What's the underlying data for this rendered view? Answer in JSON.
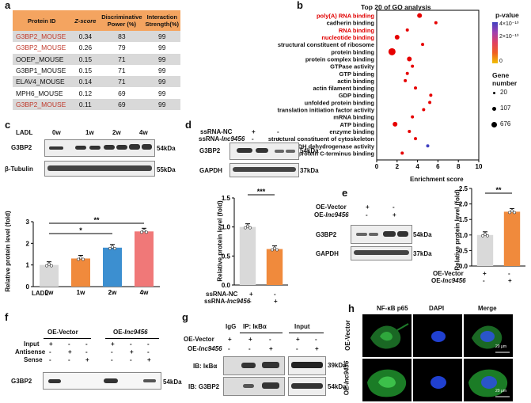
{
  "panels": {
    "a": "a",
    "b": "b",
    "c": "c",
    "d": "d",
    "e": "e",
    "f": "f",
    "g": "g",
    "h": "h"
  },
  "table": {
    "headers": [
      "Protein ID",
      "Z-score",
      "Discriminative Power (%)",
      "Interaction Strength(%)"
    ],
    "rows": [
      {
        "id": "G3BP2_MOUSE",
        "z": "0.34",
        "dp": "83",
        "is": "99",
        "highlight": true
      },
      {
        "id": "G3BP2_MOUSE",
        "z": "0.26",
        "dp": "79",
        "is": "99",
        "highlight": true
      },
      {
        "id": "OOEP_MOUSE",
        "z": "0.15",
        "dp": "71",
        "is": "99",
        "highlight": false
      },
      {
        "id": "G3BP1_MOUSE",
        "z": "0.15",
        "dp": "71",
        "is": "99",
        "highlight": false
      },
      {
        "id": "ELAV4_MOUSE",
        "z": "0.14",
        "dp": "71",
        "is": "99",
        "highlight": false
      },
      {
        "id": "MPH6_MOUSE",
        "z": "0.12",
        "dp": "69",
        "is": "99",
        "highlight": false
      },
      {
        "id": "G3BP2_MOUSE",
        "z": "0.11",
        "dp": "69",
        "is": "99",
        "highlight": true
      }
    ]
  },
  "go": {
    "title": "Top 20 of GO analysis",
    "xlabel": "Enrichment score",
    "xticks": [
      0,
      2,
      4,
      6,
      8,
      10
    ],
    "pvalue_label": "p-value",
    "pvalue_ticks": [
      "4×10⁻¹⁰",
      "2×10⁻¹⁰",
      "0"
    ],
    "gene_label": "Gene number",
    "gene_sizes": [
      "20",
      "107",
      "676"
    ],
    "colors": {
      "low": "#e60000",
      "mid": "#f0a000",
      "high": "#4040c0"
    }
  },
  "chart_data": [
    {
      "type": "scatter",
      "title": "Top 20 of GO analysis",
      "xlabel": "Enrichment score",
      "xlim": [
        0,
        10
      ],
      "categories": [
        "poly(A) RNA binding",
        "cadherin binding",
        "RNA binding",
        "nucleotide binding",
        "structural constituent of ribosome",
        "protein binding",
        "protein complex binding",
        "GTPase activity",
        "GTP binding",
        "actin binding",
        "actin filament binding",
        "GDP binding",
        "unfolded protein binding",
        "translation initiation factor activity",
        "mRNA binding",
        "ATP binding",
        "enzyme binding",
        "structural constituent of cytoskeleton",
        "NADH dehydrogenase activity",
        "protein C-terminus binding"
      ],
      "highlighted": [
        "poly(A) RNA binding",
        "RNA binding",
        "nucleotide binding"
      ],
      "x": [
        4.2,
        5.8,
        3.0,
        2.0,
        4.5,
        1.5,
        3.2,
        3.5,
        3.0,
        2.8,
        3.8,
        5.3,
        5.2,
        4.6,
        3.5,
        1.8,
        3.2,
        3.8,
        5.0,
        2.5
      ],
      "size_class": [
        "med",
        "small",
        "small",
        "med",
        "small",
        "large",
        "med",
        "small",
        "small",
        "small",
        "small",
        "small",
        "small",
        "small",
        "small",
        "med",
        "small",
        "small",
        "small",
        "small"
      ],
      "color_class": [
        "low",
        "low",
        "low",
        "low",
        "low",
        "low",
        "low",
        "low",
        "low",
        "low",
        "low",
        "low",
        "low",
        "low",
        "low",
        "low",
        "low",
        "low",
        "high",
        "low"
      ]
    },
    {
      "type": "bar",
      "ylabel": "Relative protein level (fold)",
      "categories": [
        "0w",
        "1w",
        "2w",
        "4w"
      ],
      "values": [
        1.0,
        1.3,
        1.8,
        2.55
      ],
      "ylim": [
        0,
        3.0
      ],
      "yticks": [
        "0",
        "1",
        "2",
        "3"
      ],
      "xaxis_label": "LADL",
      "sig": [
        {
          "label": "*"
        },
        {
          "label": "**"
        }
      ],
      "colors": [
        "#d9d9d9",
        "#f08a3c",
        "#3c8fd0",
        "#f07878"
      ]
    },
    {
      "type": "bar",
      "ylabel": "Relative protein level (fold)",
      "categories": [
        "ssRNA-NC",
        "ssRNA-lnc9456"
      ],
      "values": [
        1.0,
        0.62
      ],
      "ylim": [
        0,
        1.5
      ],
      "yticks": [
        "0.0",
        "0.5",
        "1.0",
        "1.5"
      ],
      "sig": [
        {
          "label": "***"
        }
      ],
      "colors": [
        "#d9d9d9",
        "#f08a3c"
      ]
    },
    {
      "type": "bar",
      "ylabel": "Relative protein level (fold)",
      "categories": [
        "OE-Vector",
        "OE-lnc9456"
      ],
      "values": [
        1.0,
        1.75
      ],
      "ylim": [
        0,
        2.5
      ],
      "yticks": [
        "0.0",
        "0.5",
        "1.0",
        "1.5",
        "2.0",
        "2.5"
      ],
      "sig": [
        {
          "label": "**"
        }
      ],
      "colors": [
        "#d9d9d9",
        "#f08a3c"
      ]
    }
  ],
  "c": {
    "ladl": "LADL",
    "weeks": [
      "0w",
      "1w",
      "2w",
      "4w"
    ],
    "rows": [
      "G3BP2",
      "β-Tubulin"
    ],
    "kda": [
      "54kDa",
      "55kDa"
    ]
  },
  "d": {
    "row1": "ssRNA-NC",
    "row2": "ssRNA-",
    "row2it": "lnc9456",
    "signs1": [
      "+",
      "-"
    ],
    "signs2": [
      "-",
      "+"
    ],
    "rows": [
      "G3BP2",
      "GAPDH"
    ],
    "kda": [
      "54kDa",
      "37kDa"
    ],
    "xlab1": "ssRNA-NC",
    "xlab2": "ssRNA-",
    "xlab2it": "lnc9456"
  },
  "e": {
    "row1": "OE-Vector",
    "row2": "OE-",
    "row2it": "lnc9456",
    "signs1": [
      "+",
      "-"
    ],
    "signs2": [
      "-",
      "+"
    ],
    "rows": [
      "G3BP2",
      "GAPDH"
    ],
    "kda": [
      "54kDa",
      "37kDa"
    ]
  },
  "f": {
    "groups": [
      "OE-Vector",
      "OE-"
    ],
    "group2it": "Inc9456",
    "rows": [
      "Input",
      "Antisense",
      "Sense"
    ],
    "signs": [
      [
        "+",
        "-",
        "-"
      ],
      [
        "-",
        "+",
        "-"
      ],
      [
        "-",
        "-",
        "+"
      ]
    ],
    "blot": "G3BP2",
    "kda": "54kDa"
  },
  "g": {
    "igg": "IgG",
    "ip": "IP: IκBα",
    "input": "Input",
    "row1": "OE-Vector",
    "row2": "OE-",
    "row2it": "lnc9456",
    "signs1": [
      "+",
      "+",
      "-",
      "+",
      "-"
    ],
    "signs2": [
      "-",
      "-",
      "+",
      "-",
      "+"
    ],
    "ib1": "IB: IκBα",
    "ib2": "IB: G3BP2",
    "kda": [
      "39kDa",
      "54kDa"
    ]
  },
  "h": {
    "cols": [
      "NF-κB p65",
      "DAPI",
      "Merge"
    ],
    "rows": [
      "OE-Vector",
      "OE-"
    ],
    "row2it": "lnc9456",
    "scale": "20 μm"
  }
}
